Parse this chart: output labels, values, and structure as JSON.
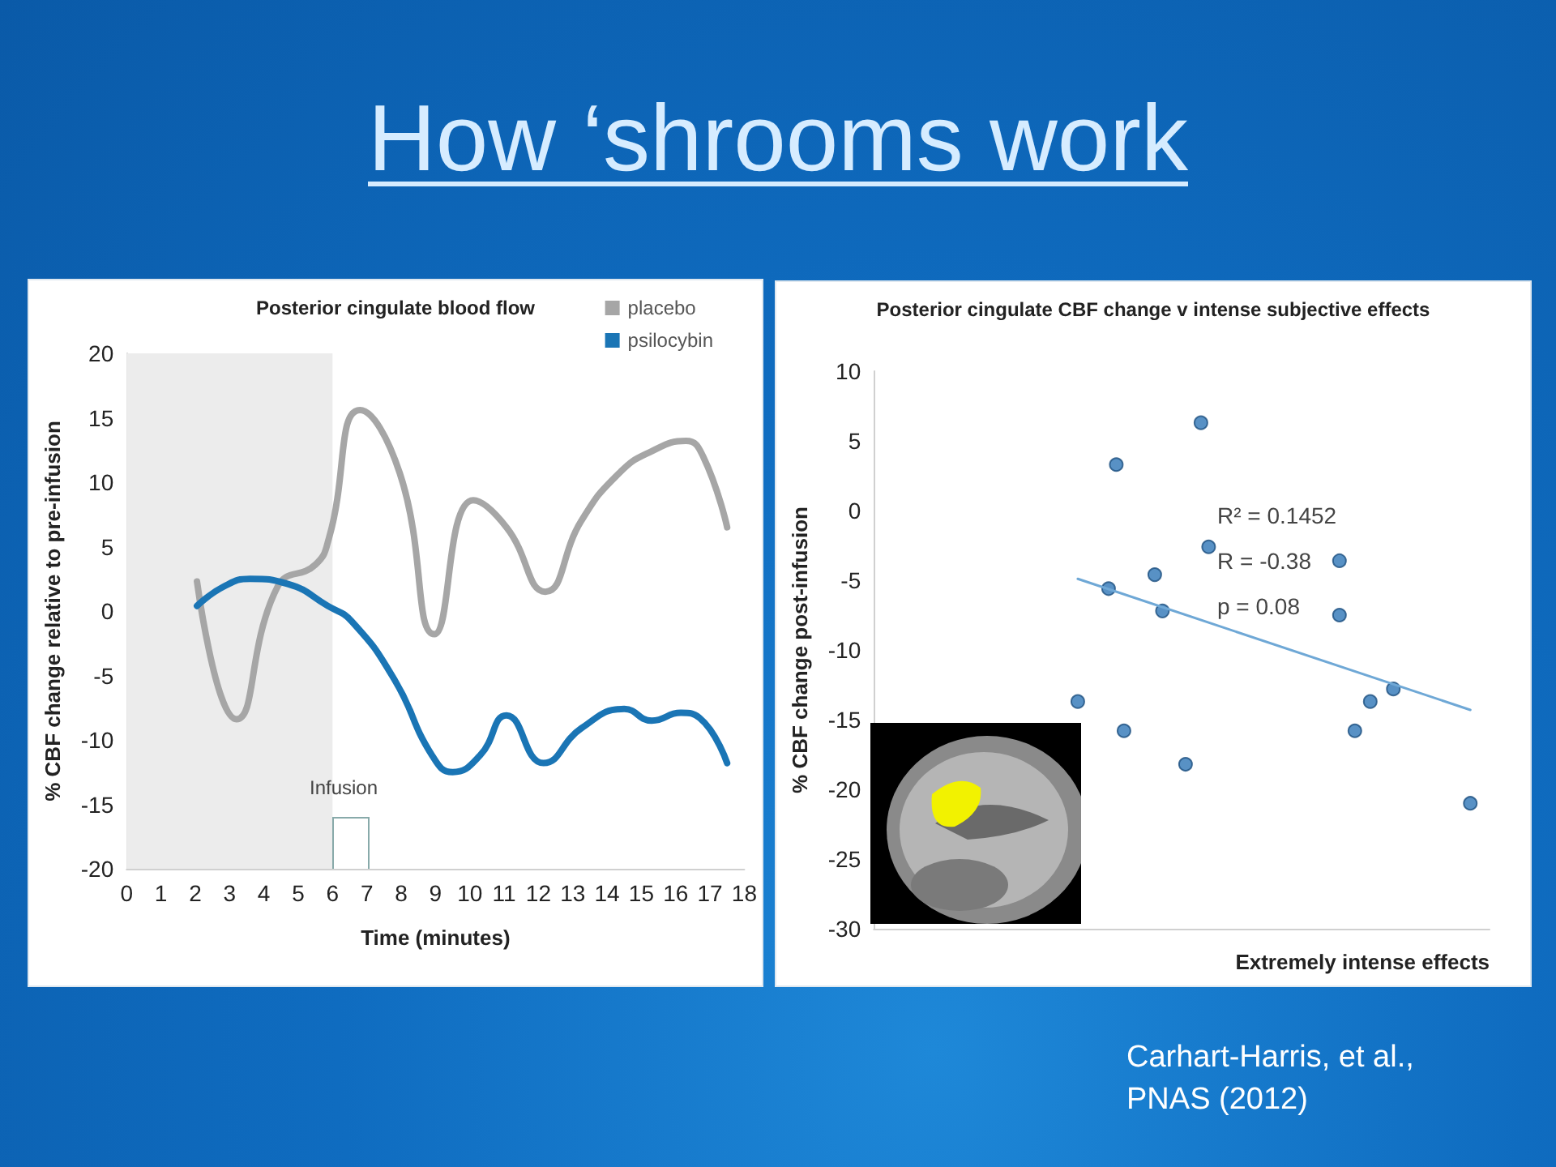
{
  "chart_data": [
    {
      "type": "other",
      "title": "How ‘shrooms work",
      "annotations": [
        "Carhart-Harris, et al.,\nPNAS (2012)"
      ]
    },
    {
      "type": "line",
      "title": "Posterior cingulate blood flow",
      "xlabel": "Time (minutes)",
      "ylabel": "% CBF change relative to pre-infusion",
      "xlim": [
        0,
        18
      ],
      "xticks": [
        0,
        1,
        2,
        3,
        4,
        5,
        6,
        7,
        8,
        9,
        10,
        11,
        12,
        13,
        14,
        15,
        16,
        17,
        18
      ],
      "ylim": [
        -20,
        20
      ],
      "yticks": [
        -20,
        -15,
        -10,
        -5,
        0,
        5,
        10,
        15,
        20
      ],
      "grid": false,
      "legend": "top right",
      "marker": "none",
      "line_style": "solid",
      "series": [
        {
          "name": "placebo",
          "color": "#a6a6a6",
          "x": [
            2.05,
            3.2,
            4.4,
            5.5,
            5.9,
            6.8,
            7.96,
            8.97,
            10.1,
            11.07,
            12.2,
            13.25,
            14.35,
            15.3,
            16.3,
            16.8,
            17.5
          ],
          "values": [
            2.3,
            -8.4,
            1.9,
            3.6,
            5.7,
            15.6,
            10.7,
            -1.8,
            8.6,
            6.5,
            1.5,
            7,
            10.7,
            12.4,
            13.2,
            12,
            6.5
          ]
        },
        {
          "name": "psilocybin",
          "color": "#1a75b5",
          "x": [
            2.05,
            2.83,
            3.6,
            4.7,
            5.86,
            6.56,
            7.8,
            8.9,
            9.5,
            10.3,
            11.07,
            12.15,
            13.25,
            14.5,
            15.3,
            16.15,
            16.7,
            17.5
          ],
          "values": [
            0.4,
            1.9,
            2.5,
            2.1,
            0.4,
            -0.8,
            -5.3,
            -11.2,
            -12.5,
            -11.2,
            -8.1,
            -11.8,
            -9.1,
            -7.6,
            -8.5,
            -7.9,
            -8.3,
            -11.8
          ]
        }
      ],
      "bands": [
        {
          "axis": "x",
          "from": 0,
          "to": 6,
          "color": "#ececec"
        }
      ],
      "annotations": [
        "Infusion"
      ]
    },
    {
      "type": "scatter",
      "title": "Posterior cingulate CBF change v intense subjective effects",
      "xlabel": "Extremely intense effects",
      "ylabel": "% CBF change post-infusion",
      "ylim": [
        -30,
        10
      ],
      "yticks": [
        -30,
        -25,
        -20,
        -15,
        -10,
        -5,
        0,
        5,
        10
      ],
      "tick_labels": "y",
      "grid": false,
      "legend": false,
      "marker": "circle",
      "categories": [
        null,
        null,
        null,
        null,
        null,
        null,
        null,
        null,
        null,
        null,
        null,
        null,
        null,
        null,
        null,
        null,
        null,
        null,
        null,
        null,
        null,
        null,
        null,
        null,
        null,
        null,
        null,
        null,
        null,
        null,
        null,
        null,
        null,
        null,
        null,
        null,
        null,
        null,
        null,
        null,
        null,
        null,
        null,
        null,
        null,
        null,
        null,
        null,
        null,
        null,
        null,
        null,
        null,
        null,
        null,
        null,
        null,
        null,
        null,
        null,
        null,
        null,
        null,
        null,
        null,
        null,
        null,
        null,
        null,
        null,
        null,
        null,
        null,
        null,
        null,
        null,
        null,
        null,
        null,
        null
      ],
      "series": [
        {
          "color": "#2e75b6",
          "values": [
            null,
            null,
            null,
            null,
            null,
            null,
            null,
            null,
            null,
            null,
            null,
            null,
            null,
            null,
            null,
            null,
            null,
            null,
            null,
            null,
            null,
            null,
            null,
            null,
            null,
            null,
            -13.7,
            null,
            null,
            null,
            -5.6,
            3.3,
            -15.8,
            null,
            null,
            null,
            -4.6,
            -7.2,
            null,
            null,
            -18.2,
            null,
            6.3,
            -2.6,
            null,
            null,
            null,
            null,
            null,
            null,
            null,
            null,
            null,
            null,
            null,
            null,
            null,
            null,
            null,
            null,
            -3.6,
            null,
            -15.8,
            null,
            -13.7,
            null,
            null,
            -12.8,
            null,
            null,
            null,
            null,
            null,
            null,
            null,
            null,
            null,
            -21.0,
            null,
            null
          ]
        },
        {
          "color": "#2e75b6",
          "values": [
            null,
            null,
            null,
            null,
            null,
            null,
            null,
            null,
            null,
            null,
            null,
            null,
            null,
            null,
            null,
            null,
            null,
            null,
            null,
            null,
            null,
            null,
            null,
            null,
            null,
            null,
            null,
            null,
            null,
            null,
            null,
            null,
            null,
            null,
            null,
            null,
            null,
            null,
            null,
            null,
            null,
            null,
            null,
            null,
            null,
            null,
            null,
            null,
            null,
            null,
            null,
            null,
            null,
            null,
            null,
            null,
            null,
            null,
            null,
            null,
            -7.5,
            null,
            null,
            null,
            null,
            null,
            null,
            null,
            null,
            null,
            null,
            null,
            null,
            null,
            null,
            null,
            null,
            null,
            null,
            null
          ]
        },
        {
          "type": "line",
          "marker": "none",
          "color": "#6fa8d6",
          "values": [
            null,
            null,
            null,
            null,
            null,
            null,
            null,
            null,
            null,
            null,
            null,
            null,
            null,
            null,
            null,
            null,
            null,
            null,
            null,
            null,
            null,
            null,
            null,
            null,
            null,
            null,
            -4.9,
            null,
            null,
            null,
            null,
            null,
            null,
            null,
            null,
            null,
            null,
            null,
            null,
            null,
            null,
            null,
            null,
            null,
            null,
            null,
            null,
            null,
            null,
            null,
            null,
            null,
            null,
            null,
            null,
            null,
            null,
            null,
            null,
            null,
            null,
            null,
            null,
            null,
            null,
            null,
            null,
            null,
            null,
            null,
            null,
            null,
            null,
            null,
            null,
            null,
            null,
            -14.3,
            null,
            null
          ]
        }
      ],
      "annotations": [
        "R² = 0.1452",
        "R = -0.38",
        "p = 0.08"
      ]
    }
  ]
}
